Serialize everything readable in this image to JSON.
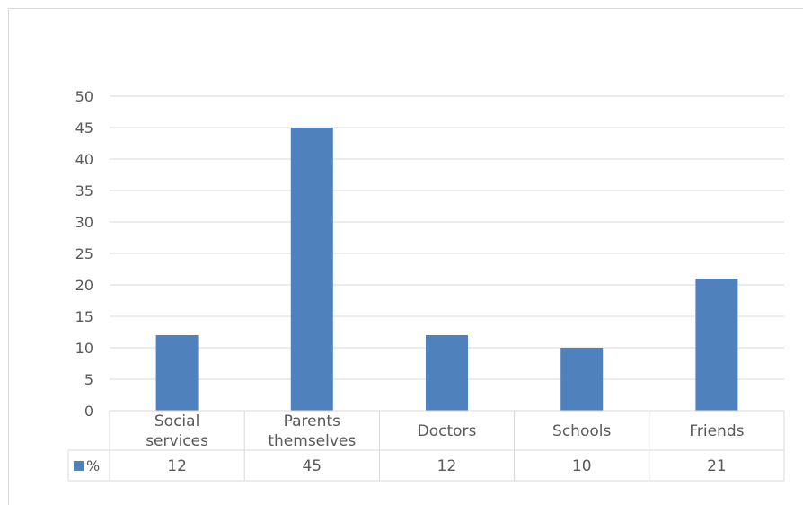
{
  "chart_data": {
    "type": "bar",
    "title": "",
    "xlabel": "",
    "ylabel": "",
    "categories": [
      [
        "Social",
        "services"
      ],
      [
        "Parents",
        "themselves"
      ],
      [
        "Doctors"
      ],
      [
        "Schools"
      ],
      [
        "Friends"
      ]
    ],
    "series": [
      {
        "name": "%",
        "values": [
          12,
          45,
          12,
          10,
          21
        ]
      }
    ],
    "ylim": [
      0,
      50
    ],
    "yticks": [
      0,
      5,
      10,
      15,
      20,
      25,
      30,
      35,
      40,
      45,
      50
    ],
    "grid": true,
    "data_table": true,
    "legend": "data-table-left",
    "colors": {
      "bar": "#4f81bd",
      "grid": "#d9d9d9",
      "text": "#595959"
    }
  }
}
